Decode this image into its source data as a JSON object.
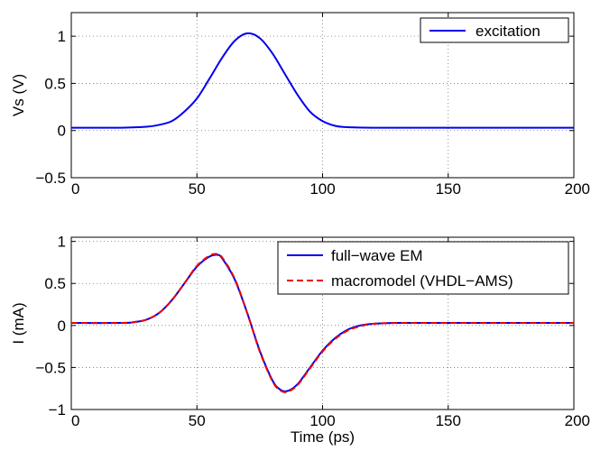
{
  "chart_data": [
    {
      "type": "line",
      "xlabel": "",
      "ylabel": "Vs (V)",
      "xlim": [
        0,
        200
      ],
      "ylim": [
        -0.5,
        1.25
      ],
      "xticks": [
        0,
        50,
        100,
        150,
        200
      ],
      "xtick_labels": [
        "0",
        "50",
        "100",
        "150",
        "200"
      ],
      "yticks": [
        -0.5,
        0,
        0.5,
        1
      ],
      "ytick_labels": [
        "−0.5",
        "0",
        "0.5",
        "1"
      ],
      "grid": true,
      "legend_position": "top-right",
      "series": [
        {
          "name": "excitation",
          "color": "#0000ee",
          "dash": "solid",
          "x": [
            0,
            20,
            30,
            35,
            40,
            45,
            50,
            55,
            60,
            65,
            70,
            75,
            80,
            85,
            90,
            95,
            100,
            105,
            110,
            120,
            140,
            160,
            200
          ],
          "y": [
            0.03,
            0.03,
            0.04,
            0.06,
            0.1,
            0.2,
            0.34,
            0.55,
            0.77,
            0.95,
            1.03,
            0.98,
            0.82,
            0.6,
            0.38,
            0.2,
            0.1,
            0.05,
            0.035,
            0.03,
            0.03,
            0.03,
            0.03
          ]
        }
      ]
    },
    {
      "type": "line",
      "xlabel": "Time (ps)",
      "ylabel": "I (mA)",
      "xlim": [
        0,
        200
      ],
      "ylim": [
        -1,
        1.05
      ],
      "xticks": [
        0,
        50,
        100,
        150,
        200
      ],
      "xtick_labels": [
        "0",
        "50",
        "100",
        "150",
        "200"
      ],
      "yticks": [
        -1,
        -0.5,
        0,
        0.5,
        1
      ],
      "ytick_labels": [
        "−1",
        "−0.5",
        "0",
        "0.5",
        "1"
      ],
      "grid": true,
      "legend_position": "top-right",
      "series": [
        {
          "name": "full−wave EM",
          "color": "#0000ee",
          "dash": "solid",
          "x": [
            0,
            20,
            25,
            30,
            35,
            40,
            45,
            50,
            55,
            58,
            60,
            65,
            70,
            75,
            80,
            83,
            86,
            90,
            95,
            100,
            105,
            110,
            115,
            120,
            130,
            150,
            200
          ],
          "y": [
            0.03,
            0.03,
            0.04,
            0.07,
            0.15,
            0.3,
            0.5,
            0.7,
            0.82,
            0.84,
            0.8,
            0.55,
            0.15,
            -0.3,
            -0.65,
            -0.76,
            -0.78,
            -0.7,
            -0.5,
            -0.3,
            -0.15,
            -0.05,
            0.0,
            0.02,
            0.03,
            0.03,
            0.03
          ]
        },
        {
          "name": "macromodel (VHDL−AMS)",
          "color": "#ee0000",
          "dash": "dashed",
          "x": [
            0,
            20,
            25,
            30,
            35,
            40,
            45,
            50,
            55,
            58,
            60,
            65,
            70,
            75,
            80,
            83,
            86,
            90,
            95,
            100,
            105,
            110,
            115,
            120,
            130,
            150,
            200
          ],
          "y": [
            0.03,
            0.03,
            0.04,
            0.07,
            0.15,
            0.3,
            0.5,
            0.71,
            0.83,
            0.85,
            0.81,
            0.56,
            0.15,
            -0.31,
            -0.66,
            -0.77,
            -0.79,
            -0.71,
            -0.51,
            -0.31,
            -0.16,
            -0.06,
            -0.01,
            0.02,
            0.03,
            0.03,
            0.03
          ]
        }
      ]
    }
  ]
}
